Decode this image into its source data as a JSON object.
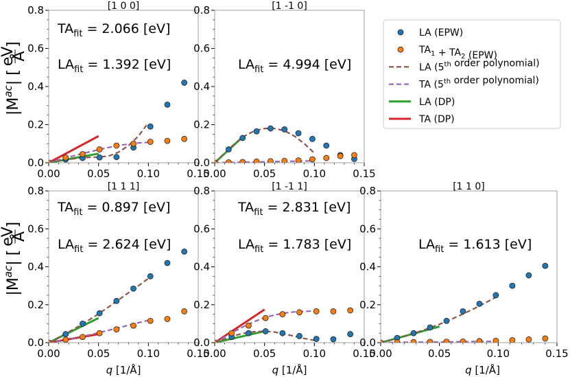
{
  "colors": {
    "la_points": "#1f77b4",
    "ta_points": "#ff7f0e",
    "la_poly": "#8c564b",
    "ta_poly": "#9467bd",
    "la_dp": "#2ca02c",
    "ta_dp": "#d62728"
  },
  "legend": {
    "items": [
      {
        "key": "la_points",
        "kind": "marker",
        "parts": [
          {
            "t": "LA (EPW)"
          }
        ]
      },
      {
        "key": "ta_points",
        "kind": "marker",
        "parts": [
          {
            "t": "TA"
          },
          {
            "t": "1",
            "sub": true
          },
          {
            "t": " + TA"
          },
          {
            "t": "2",
            "sub": true
          },
          {
            "t": " (EPW)"
          }
        ]
      },
      {
        "key": "la_poly",
        "kind": "dash",
        "parts": [
          {
            "t": "LA (5"
          },
          {
            "t": "th",
            "sup": true
          },
          {
            "t": " order polynomial)"
          }
        ]
      },
      {
        "key": "ta_poly",
        "kind": "dash",
        "parts": [
          {
            "t": "TA (5"
          },
          {
            "t": "th",
            "sup": true
          },
          {
            "t": " order polynomial)"
          }
        ]
      },
      {
        "key": "la_dp",
        "kind": "line",
        "parts": [
          {
            "t": "LA (DP)"
          }
        ]
      },
      {
        "key": "ta_dp",
        "kind": "line",
        "parts": [
          {
            "t": "TA (DP)"
          }
        ]
      }
    ]
  },
  "labels": {
    "ylabel_main": "|M",
    "ylabel_sup": "ac",
    "ylabel_close": "| [",
    "ylabel_num": "eV",
    "ylabel_den": "Å",
    "ylabel_end": "]",
    "xlabel_q": "q",
    "xlabel_unit": " [1/Å]",
    "ta_fit": "TA",
    "la_fit": "LA",
    "fit_sub": "fit",
    "ann_format": " = {v} [eV]"
  },
  "chart_data": [
    {
      "type": "scatter",
      "title": "[1 0 0]",
      "xlim": [
        0,
        0.15
      ],
      "ylim": [
        0,
        0.8
      ],
      "xticks": [
        "0.00",
        "0.05",
        "0.10",
        "0.15"
      ],
      "yticks": [
        "0.0",
        "0.2",
        "0.4",
        "0.6",
        "0.8"
      ],
      "xlabel": "",
      "ylabel": "|M^ac| [eV/Å]",
      "TA_fit": "2.066",
      "LA_fit": "1.392",
      "series": [
        {
          "name": "LA (EPW)",
          "x": [
            0.0,
            0.017,
            0.034,
            0.051,
            0.068,
            0.085,
            0.102,
            0.119,
            0.136
          ],
          "y": [
            0.0,
            0.017,
            0.025,
            0.028,
            0.03,
            0.08,
            0.19,
            0.305,
            0.42
          ]
        },
        {
          "name": "TA1 + TA2 (EPW)",
          "x": [
            0.0,
            0.017,
            0.034,
            0.051,
            0.068,
            0.085,
            0.102,
            0.119,
            0.136
          ],
          "y": [
            0.0,
            0.027,
            0.045,
            0.07,
            0.09,
            0.1,
            0.11,
            0.115,
            0.125
          ]
        },
        {
          "name": "LA (5th order polynomial)",
          "x": [
            0.0,
            0.01,
            0.02,
            0.03,
            0.04,
            0.05,
            0.06,
            0.07,
            0.08,
            0.09,
            0.1
          ],
          "y": [
            0.0,
            0.01,
            0.018,
            0.024,
            0.028,
            0.03,
            0.035,
            0.055,
            0.09,
            0.14,
            0.21
          ]
        },
        {
          "name": "TA (5th order polynomial)",
          "x": [
            0.0,
            0.01,
            0.02,
            0.03,
            0.04,
            0.05,
            0.06,
            0.07,
            0.08,
            0.09,
            0.1
          ],
          "y": [
            0.0,
            0.015,
            0.03,
            0.043,
            0.056,
            0.068,
            0.08,
            0.09,
            0.098,
            0.104,
            0.107
          ]
        },
        {
          "name": "LA (DP)",
          "x": [
            0.0,
            0.05
          ],
          "y": [
            0.0,
            0.048
          ]
        },
        {
          "name": "TA (DP)",
          "x": [
            0.0,
            0.05
          ],
          "y": [
            0.0,
            0.14
          ]
        }
      ]
    },
    {
      "type": "scatter",
      "title": "[1 -1 0]",
      "xlim": [
        0,
        0.15
      ],
      "ylim": [
        0,
        0.8
      ],
      "xticks": [
        "0.00",
        "0.05",
        "0.10",
        "0.15"
      ],
      "yticks": [
        "0.0",
        "0.2",
        "0.4",
        "0.6",
        "0.8"
      ],
      "xlabel": "",
      "ylabel": "",
      "LA_fit": "4.994",
      "series": [
        {
          "name": "LA (EPW)",
          "x": [
            0.0,
            0.014,
            0.028,
            0.042,
            0.056,
            0.07,
            0.084,
            0.098,
            0.112,
            0.126,
            0.14
          ],
          "y": [
            0.0,
            0.07,
            0.13,
            0.165,
            0.18,
            0.175,
            0.155,
            0.125,
            0.09,
            0.04,
            0.02
          ]
        },
        {
          "name": "TA1 + TA2 (EPW)",
          "x": [
            0.0,
            0.014,
            0.028,
            0.042,
            0.056,
            0.07,
            0.084,
            0.098,
            0.112,
            0.126,
            0.14
          ],
          "y": [
            0.0,
            0.002,
            0.004,
            0.006,
            0.008,
            0.01,
            0.012,
            0.018,
            0.025,
            0.035,
            0.04
          ]
        },
        {
          "name": "LA (5th order polynomial)",
          "x": [
            0.0,
            0.01,
            0.02,
            0.03,
            0.04,
            0.05,
            0.06,
            0.07,
            0.08,
            0.09,
            0.1
          ],
          "y": [
            0.0,
            0.05,
            0.1,
            0.14,
            0.168,
            0.18,
            0.18,
            0.168,
            0.14,
            0.1,
            0.05
          ]
        },
        {
          "name": "TA (5th order polynomial)",
          "x": [
            0.0,
            0.02,
            0.04,
            0.06,
            0.08,
            0.1
          ],
          "y": [
            0.0,
            0.002,
            0.004,
            0.006,
            0.008,
            0.01
          ]
        },
        {
          "name": "LA (DP)",
          "x": [
            0.0,
            0.027
          ],
          "y": [
            0.0,
            0.13
          ]
        },
        {
          "name": "TA (DP)",
          "x": [],
          "y": []
        }
      ]
    },
    {
      "type": "scatter",
      "title": "[1 1 1]",
      "xlim": [
        0,
        0.15
      ],
      "ylim": [
        0,
        0.8
      ],
      "xticks": [
        "0.00",
        "0.05",
        "0.10",
        "0.15"
      ],
      "yticks": [
        "0.0",
        "0.2",
        "0.4",
        "0.6",
        "0.8"
      ],
      "xlabel": "q [1/Å]",
      "ylabel": "|M^ac| [eV/Å]",
      "TA_fit": "0.897",
      "LA_fit": "2.624",
      "series": [
        {
          "name": "LA (EPW)",
          "x": [
            0.0,
            0.017,
            0.034,
            0.051,
            0.068,
            0.085,
            0.102,
            0.119,
            0.136
          ],
          "y": [
            0.0,
            0.045,
            0.1,
            0.155,
            0.22,
            0.285,
            0.35,
            0.42,
            0.48
          ]
        },
        {
          "name": "TA1 + TA2 (EPW)",
          "x": [
            0.0,
            0.017,
            0.034,
            0.051,
            0.068,
            0.085,
            0.102,
            0.119,
            0.136
          ],
          "y": [
            0.0,
            0.016,
            0.03,
            0.05,
            0.07,
            0.09,
            0.115,
            0.125,
            0.165
          ]
        },
        {
          "name": "LA (5th order polynomial)",
          "x": [
            0.0,
            0.01,
            0.02,
            0.03,
            0.04,
            0.05,
            0.06,
            0.07,
            0.08,
            0.09,
            0.1
          ],
          "y": [
            0.0,
            0.028,
            0.056,
            0.086,
            0.118,
            0.152,
            0.188,
            0.225,
            0.263,
            0.3,
            0.338
          ]
        },
        {
          "name": "TA (5th order polynomial)",
          "x": [
            0.0,
            0.01,
            0.02,
            0.03,
            0.04,
            0.05,
            0.06,
            0.07,
            0.08,
            0.09,
            0.1
          ],
          "y": [
            0.0,
            0.009,
            0.018,
            0.028,
            0.04,
            0.052,
            0.065,
            0.078,
            0.092,
            0.105,
            0.118
          ]
        },
        {
          "name": "LA (DP)",
          "x": [
            0.0,
            0.05
          ],
          "y": [
            0.0,
            0.13
          ]
        },
        {
          "name": "TA (DP)",
          "x": [
            0.0,
            0.05
          ],
          "y": [
            0.0,
            0.045
          ]
        }
      ]
    },
    {
      "type": "scatter",
      "title": "[1 -1 1]",
      "xlim": [
        0,
        0.15
      ],
      "ylim": [
        0,
        0.8
      ],
      "xticks": [
        "0.00",
        "0.05",
        "0.10",
        "0.15"
      ],
      "yticks": [
        "0.0",
        "0.2",
        "0.4",
        "0.6",
        "0.8"
      ],
      "xlabel": "q [1/Å]",
      "ylabel": "",
      "TA_fit": "2.831",
      "LA_fit": "1.783",
      "series": [
        {
          "name": "LA (EPW)",
          "x": [
            0.0,
            0.017,
            0.034,
            0.051,
            0.068,
            0.085,
            0.102,
            0.119,
            0.136
          ],
          "y": [
            0.0,
            0.03,
            0.05,
            0.06,
            0.05,
            0.035,
            0.02,
            0.018,
            0.045
          ]
        },
        {
          "name": "TA1 + TA2 (EPW)",
          "x": [
            0.0,
            0.017,
            0.034,
            0.051,
            0.068,
            0.085,
            0.102,
            0.119,
            0.136
          ],
          "y": [
            0.0,
            0.05,
            0.09,
            0.13,
            0.15,
            0.16,
            0.165,
            0.165,
            0.17
          ]
        },
        {
          "name": "LA (5th order polynomial)",
          "x": [
            0.0,
            0.01,
            0.02,
            0.03,
            0.04,
            0.05,
            0.06,
            0.07,
            0.08,
            0.09,
            0.1
          ],
          "y": [
            0.0,
            0.02,
            0.038,
            0.05,
            0.058,
            0.06,
            0.056,
            0.046,
            0.034,
            0.022,
            0.012
          ]
        },
        {
          "name": "TA (5th order polynomial)",
          "x": [
            0.0,
            0.01,
            0.02,
            0.03,
            0.04,
            0.05,
            0.06,
            0.07,
            0.08,
            0.09,
            0.1
          ],
          "y": [
            0.0,
            0.03,
            0.06,
            0.088,
            0.112,
            0.132,
            0.146,
            0.156,
            0.162,
            0.165,
            0.167
          ]
        },
        {
          "name": "LA (DP)",
          "x": [
            0.0,
            0.05
          ],
          "y": [
            0.0,
            0.06
          ]
        },
        {
          "name": "TA (DP)",
          "x": [
            0.0,
            0.05
          ],
          "y": [
            0.0,
            0.175
          ]
        }
      ]
    },
    {
      "type": "scatter",
      "title": "[1 1 0]",
      "xlim": [
        0,
        0.15
      ],
      "ylim": [
        0,
        0.8
      ],
      "xticks": [
        "0.00",
        "0.05",
        "0.10",
        "0.15"
      ],
      "yticks": [
        "0.0",
        "0.2",
        "0.4",
        "0.6",
        "0.8"
      ],
      "xlabel": "q [1/Å]",
      "ylabel": "",
      "LA_fit": "1.613",
      "series": [
        {
          "name": "LA (EPW)",
          "x": [
            0.0,
            0.014,
            0.028,
            0.042,
            0.056,
            0.07,
            0.084,
            0.098,
            0.112,
            0.126,
            0.14
          ],
          "y": [
            0.0,
            0.025,
            0.05,
            0.08,
            0.115,
            0.165,
            0.205,
            0.25,
            0.3,
            0.355,
            0.405
          ]
        },
        {
          "name": "TA1 + TA2 (EPW)",
          "x": [
            0.0,
            0.014,
            0.028,
            0.042,
            0.056,
            0.07,
            0.084,
            0.098,
            0.112,
            0.126,
            0.14
          ],
          "y": [
            0.0,
            0.002,
            0.003,
            0.004,
            0.005,
            0.006,
            0.008,
            0.01,
            0.013,
            0.017,
            0.022
          ]
        },
        {
          "name": "LA (5th order polynomial)",
          "x": [
            0.0,
            0.01,
            0.02,
            0.03,
            0.04,
            0.05,
            0.06,
            0.07,
            0.08,
            0.09,
            0.1
          ],
          "y": [
            0.0,
            0.016,
            0.034,
            0.053,
            0.074,
            0.097,
            0.123,
            0.151,
            0.181,
            0.213,
            0.247
          ]
        },
        {
          "name": "TA (5th order polynomial)",
          "x": [
            0.0,
            0.02,
            0.04,
            0.06,
            0.08,
            0.1
          ],
          "y": [
            0.0,
            0.002,
            0.003,
            0.004,
            0.006,
            0.007
          ]
        },
        {
          "name": "LA (DP)",
          "x": [
            0.0,
            0.05
          ],
          "y": [
            0.0,
            0.085
          ]
        },
        {
          "name": "TA (DP)",
          "x": [],
          "y": []
        }
      ]
    }
  ]
}
